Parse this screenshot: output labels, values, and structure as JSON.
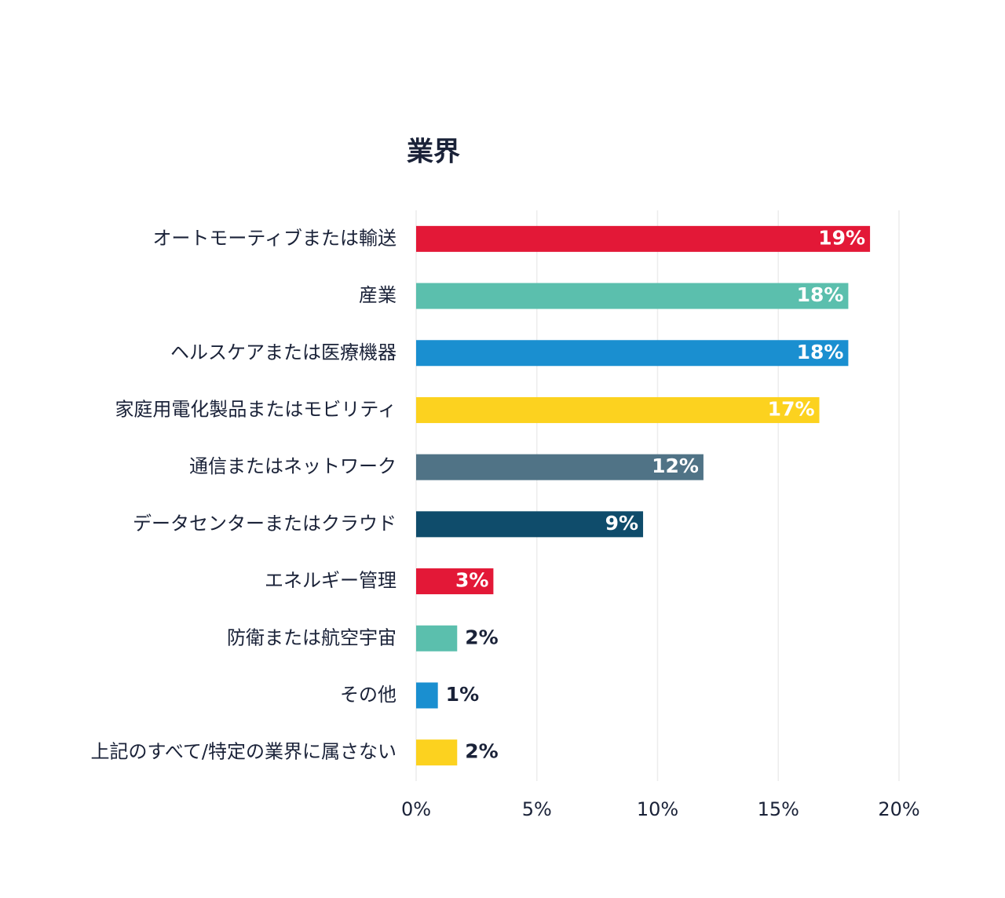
{
  "chart_data": {
    "type": "bar",
    "orientation": "horizontal",
    "title": "業界",
    "categories": [
      "オートモーティブまたは輸送",
      "産業",
      "ヘルスケアまたは医療機器",
      "家庭用電化製品またはモビリティ",
      "通信またはネットワーク",
      "データセンターまたはクラウド",
      "エネルギー管理",
      "防衛または航空宇宙",
      "その他",
      "上記のすべて/特定の業界に属さない"
    ],
    "values": [
      18.8,
      17.9,
      17.9,
      16.7,
      11.9,
      9.4,
      3.2,
      1.7,
      0.9,
      1.7
    ],
    "value_labels": [
      "19%",
      "18%",
      "18%",
      "17%",
      "12%",
      "9%",
      "3%",
      "2%",
      "1%",
      "2%"
    ],
    "colors": [
      "#e31837",
      "#5bbfad",
      "#1a8fd0",
      "#fcd21f",
      "#507386",
      "#0f4c6b",
      "#e31837",
      "#5bbfad",
      "#1a8fd0",
      "#fcd21f"
    ],
    "xlim": [
      0,
      20
    ],
    "xticks": [
      {
        "value": 0,
        "label": "0%"
      },
      {
        "value": 5,
        "label": "5%"
      },
      {
        "value": 10,
        "label": "10%"
      },
      {
        "value": 15,
        "label": "15%"
      },
      {
        "value": 20,
        "label": "20%"
      }
    ],
    "grid": true
  }
}
